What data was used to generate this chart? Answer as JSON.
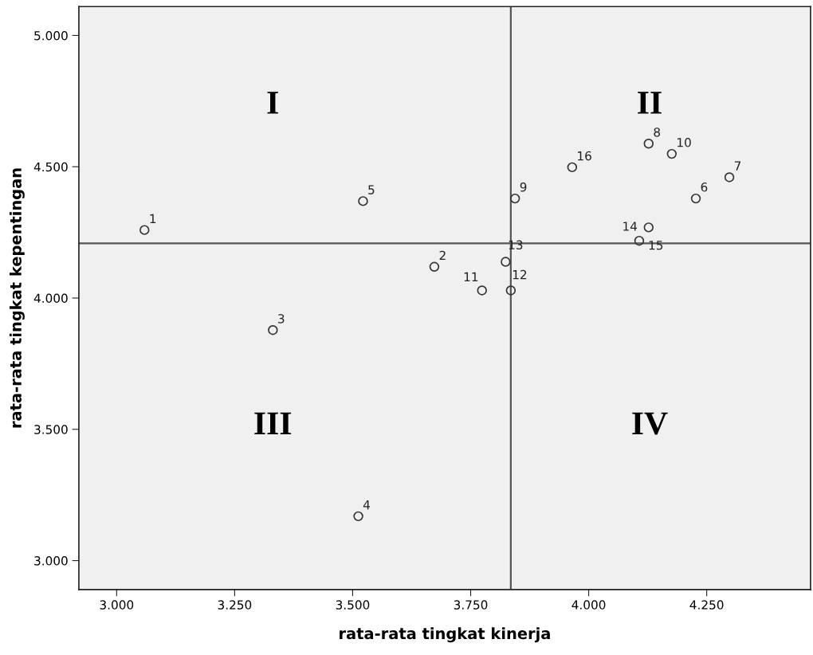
{
  "chart_data": {
    "type": "scatter",
    "xlabel": "rata-rata tingkat kinerja",
    "ylabel": "rata-rata tingkat kepentingan",
    "xlim": [
      2.92,
      4.47
    ],
    "ylim": [
      2.89,
      5.11
    ],
    "xticks": [
      {
        "value": 3.0,
        "label": "3.000"
      },
      {
        "value": 3.25,
        "label": "3.250"
      },
      {
        "value": 3.5,
        "label": "3.500"
      },
      {
        "value": 3.75,
        "label": "3.750"
      },
      {
        "value": 4.0,
        "label": "4.000"
      },
      {
        "value": 4.25,
        "label": "4.250"
      }
    ],
    "yticks": [
      {
        "value": 3.0,
        "label": "3.000"
      },
      {
        "value": 3.5,
        "label": "3.500"
      },
      {
        "value": 4.0,
        "label": "4.000"
      },
      {
        "value": 4.5,
        "label": "4.500"
      },
      {
        "value": 5.0,
        "label": "5.000"
      }
    ],
    "marker": "circle",
    "series": [
      {
        "color": "#333333",
        "x": [
          3.059,
          3.673,
          3.331,
          3.512,
          3.522,
          4.227,
          4.298,
          4.127,
          3.844,
          4.176,
          3.774,
          3.835,
          3.824,
          4.127,
          4.107,
          3.965
        ],
        "values": [
          4.259,
          4.119,
          3.878,
          3.169,
          4.369,
          4.379,
          4.46,
          4.588,
          4.379,
          4.549,
          4.029,
          4.029,
          4.138,
          4.269,
          4.218,
          4.498
        ]
      }
    ],
    "ref_lines": [
      {
        "axis": "x",
        "value": 3.835,
        "label": null,
        "color": "#555555"
      },
      {
        "axis": "y",
        "value": 4.208,
        "label": null,
        "color": "#555555"
      }
    ],
    "annotations": [
      "I",
      "II",
      "III",
      "IV",
      {
        "text": "1",
        "x": 3.059,
        "y": 4.259
      },
      {
        "text": "2",
        "x": 3.673,
        "y": 4.119
      },
      {
        "text": "3",
        "x": 3.331,
        "y": 3.878
      },
      {
        "text": "4",
        "x": 3.512,
        "y": 3.169
      },
      {
        "text": "5",
        "x": 3.522,
        "y": 4.369
      },
      {
        "text": "6",
        "x": 4.227,
        "y": 4.379
      },
      {
        "text": "7",
        "x": 4.298,
        "y": 4.46
      },
      {
        "text": "8",
        "x": 4.127,
        "y": 4.588
      },
      {
        "text": "9",
        "x": 3.844,
        "y": 4.379
      },
      {
        "text": "10",
        "x": 4.176,
        "y": 4.549
      },
      {
        "text": "11",
        "x": 3.774,
        "y": 4.029
      },
      {
        "text": "12",
        "x": 3.835,
        "y": 4.029
      },
      {
        "text": "13",
        "x": 3.824,
        "y": 4.138
      },
      {
        "text": "14",
        "x": 4.127,
        "y": 4.269
      },
      {
        "text": "15",
        "x": 4.107,
        "y": 4.218
      },
      {
        "text": "16",
        "x": 3.965,
        "y": 4.498
      }
    ]
  }
}
